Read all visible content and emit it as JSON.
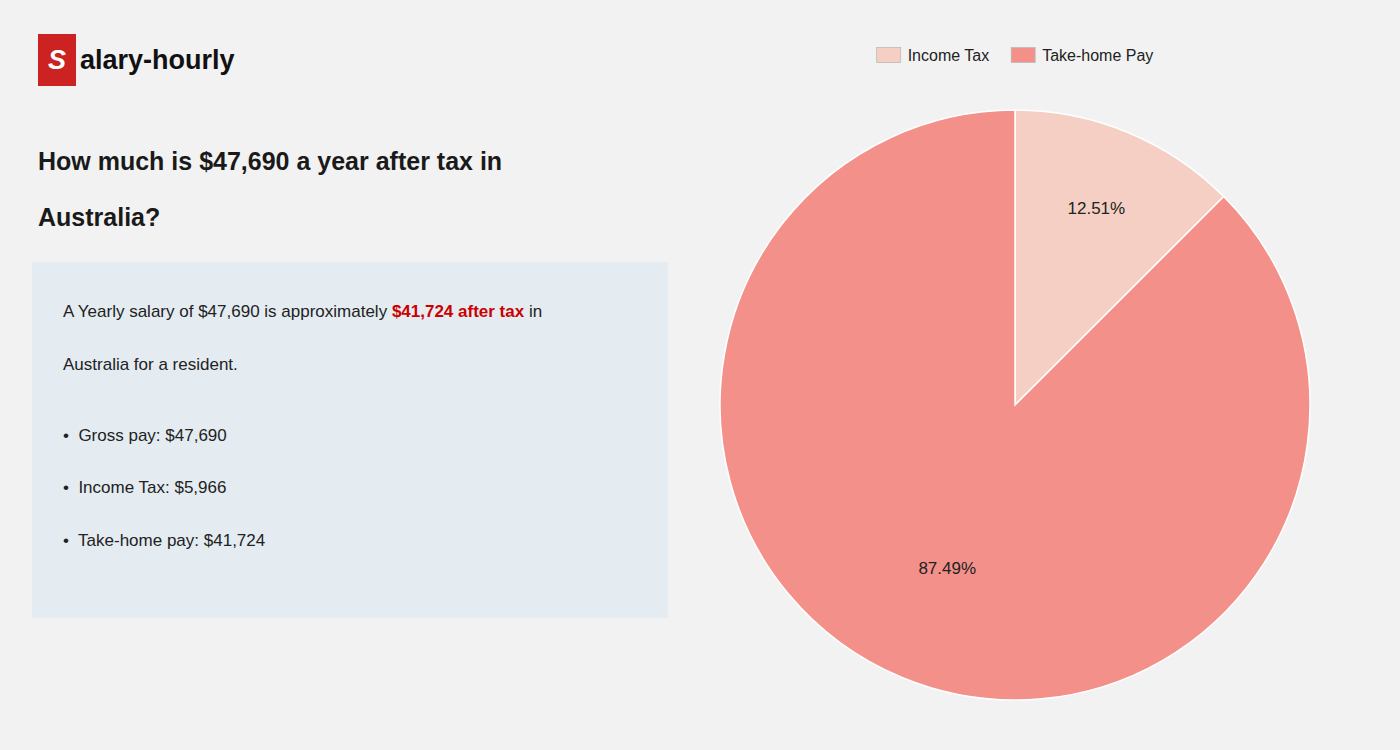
{
  "chart_data": {
    "type": "pie",
    "title": [
      "How much is $47,690 a year after tax in",
      "Australia?"
    ],
    "logo": [
      {
        "text": "S",
        "color": "#cc2222"
      },
      {
        "text": "alary-hourly"
      }
    ],
    "summary": [
      [
        {
          "text": "A Yearly salary of $47,690 is approximately "
        },
        {
          "text": "$41,724 after tax",
          "color": "#cc0000"
        },
        {
          "text": " in"
        }
      ],
      [
        {
          "text": "Australia for a resident."
        }
      ]
    ],
    "bullets": [
      "•  Gross pay: $47,690",
      "•  Income Tax: $5,966",
      "•  Take-home pay: $41,724"
    ],
    "categories": [
      "Income Tax",
      "Take-home Pay"
    ],
    "values": [
      12.51,
      87.49
    ],
    "value_labels": [
      "12.51%",
      "87.49%"
    ],
    "colors": [
      "#f5cfc4",
      "#f4908a"
    ],
    "data_labels": true,
    "legend": "top"
  }
}
